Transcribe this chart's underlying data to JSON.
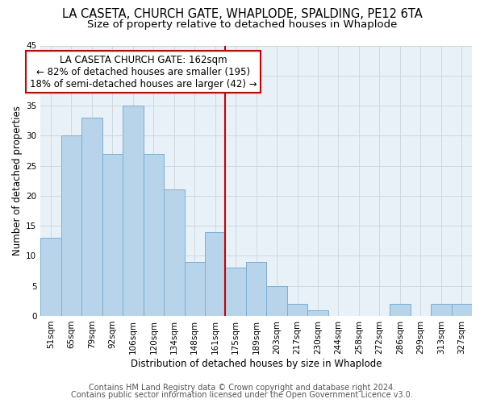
{
  "title": "LA CASETA, CHURCH GATE, WHAPLODE, SPALDING, PE12 6TA",
  "subtitle": "Size of property relative to detached houses in Whaplode",
  "xlabel": "Distribution of detached houses by size in Whaplode",
  "ylabel": "Number of detached properties",
  "bar_color": "#b8d4ea",
  "bar_edge_color": "#7aafd4",
  "categories": [
    "51sqm",
    "65sqm",
    "79sqm",
    "92sqm",
    "106sqm",
    "120sqm",
    "134sqm",
    "148sqm",
    "161sqm",
    "175sqm",
    "189sqm",
    "203sqm",
    "217sqm",
    "230sqm",
    "244sqm",
    "258sqm",
    "272sqm",
    "286sqm",
    "299sqm",
    "313sqm",
    "327sqm"
  ],
  "values": [
    13,
    30,
    33,
    27,
    35,
    27,
    21,
    9,
    14,
    8,
    9,
    5,
    2,
    1,
    0,
    0,
    0,
    2,
    0,
    2,
    2
  ],
  "ylim": [
    0,
    45
  ],
  "yticks": [
    0,
    5,
    10,
    15,
    20,
    25,
    30,
    35,
    40,
    45
  ],
  "ref_line_index": 8,
  "ref_line_color": "#cc0000",
  "annotation_title": "LA CASETA CHURCH GATE: 162sqm",
  "annotation_line1": "← 82% of detached houses are smaller (195)",
  "annotation_line2": "18% of semi-detached houses are larger (42) →",
  "annotation_box_color": "#ffffff",
  "annotation_box_edge_color": "#cc0000",
  "footer1": "Contains HM Land Registry data © Crown copyright and database right 2024.",
  "footer2": "Contains public sector information licensed under the Open Government Licence v3.0.",
  "background_color": "#ffffff",
  "plot_bg_color": "#e8f0f8",
  "grid_color": "#d0d8e0",
  "title_fontsize": 10.5,
  "subtitle_fontsize": 9.5,
  "axis_label_fontsize": 8.5,
  "tick_fontsize": 7.5,
  "annotation_fontsize": 8.5,
  "footer_fontsize": 7
}
